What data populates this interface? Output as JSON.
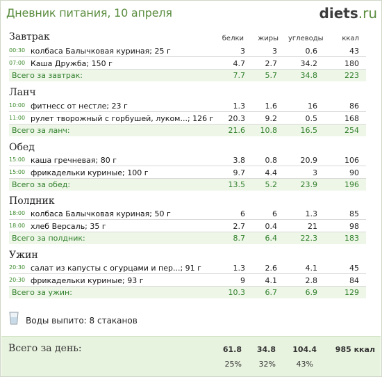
{
  "header": {
    "title": "Дневник питания, 10 апреля",
    "logo_main": "diets",
    "logo_tld": ".ru"
  },
  "columns": [
    "белки",
    "жиры",
    "углеводы",
    "ккал"
  ],
  "meals": [
    {
      "title": "Завтрак",
      "items": [
        {
          "time": "00:30",
          "name": "колбаса Балычковая куриная; 25 г",
          "protein": "3",
          "fat": "3",
          "carbs": "0.6",
          "kcal": "43"
        },
        {
          "time": "07:00",
          "name": "Каша Дружба; 150 г",
          "protein": "4.7",
          "fat": "2.7",
          "carbs": "34.2",
          "kcal": "180"
        }
      ],
      "total": {
        "label": "Всего за завтрак:",
        "protein": "7.7",
        "fat": "5.7",
        "carbs": "34.8",
        "kcal": "223"
      }
    },
    {
      "title": "Ланч",
      "items": [
        {
          "time": "10:00",
          "name": "фитнесс от нестле; 23 г",
          "protein": "1.3",
          "fat": "1.6",
          "carbs": "16",
          "kcal": "86"
        },
        {
          "time": "11:00",
          "name": "рулет творожный с горбушей, луком...; 126 г",
          "protein": "20.3",
          "fat": "9.2",
          "carbs": "0.5",
          "kcal": "168"
        }
      ],
      "total": {
        "label": "Всего за ланч:",
        "protein": "21.6",
        "fat": "10.8",
        "carbs": "16.5",
        "kcal": "254"
      }
    },
    {
      "title": "Обед",
      "items": [
        {
          "time": "15:00",
          "name": "каша гречневая; 80 г",
          "protein": "3.8",
          "fat": "0.8",
          "carbs": "20.9",
          "kcal": "106"
        },
        {
          "time": "15:00",
          "name": "фрикадельки куриные; 100 г",
          "protein": "9.7",
          "fat": "4.4",
          "carbs": "3",
          "kcal": "90"
        }
      ],
      "total": {
        "label": "Всего за обед:",
        "protein": "13.5",
        "fat": "5.2",
        "carbs": "23.9",
        "kcal": "196"
      }
    },
    {
      "title": "Полдник",
      "items": [
        {
          "time": "18:00",
          "name": "колбаса Балычковая куриная; 50 г",
          "protein": "6",
          "fat": "6",
          "carbs": "1.3",
          "kcal": "85"
        },
        {
          "time": "18:00",
          "name": "хлеб Версаль; 35 г",
          "protein": "2.7",
          "fat": "0.4",
          "carbs": "21",
          "kcal": "98"
        }
      ],
      "total": {
        "label": "Всего за полдник:",
        "protein": "8.7",
        "fat": "6.4",
        "carbs": "22.3",
        "kcal": "183"
      }
    },
    {
      "title": "Ужин",
      "items": [
        {
          "time": "20:30",
          "name": "салат из капусты с огурцами и пер...; 91 г",
          "protein": "1.3",
          "fat": "2.6",
          "carbs": "4.1",
          "kcal": "45"
        },
        {
          "time": "20:30",
          "name": "фрикадельки куриные; 93 г",
          "protein": "9",
          "fat": "4.1",
          "carbs": "2.8",
          "kcal": "84"
        }
      ],
      "total": {
        "label": "Всего за ужин:",
        "protein": "10.3",
        "fat": "6.7",
        "carbs": "6.9",
        "kcal": "129"
      }
    }
  ],
  "water": {
    "icon": "glass-icon",
    "text": "Воды выпито: 8 стаканов"
  },
  "day_total": {
    "label": "Всего за день:",
    "protein": "61.8",
    "fat": "34.8",
    "carbs": "104.4",
    "kcal": "985 ккал",
    "protein_pct": "25%",
    "fat_pct": "32%",
    "carbs_pct": "43%"
  },
  "colors": {
    "accent": "#5b8d3f",
    "total_text": "#2f7f2a",
    "total_bg": "#eef6e8",
    "day_bg": "#e8f3df"
  }
}
